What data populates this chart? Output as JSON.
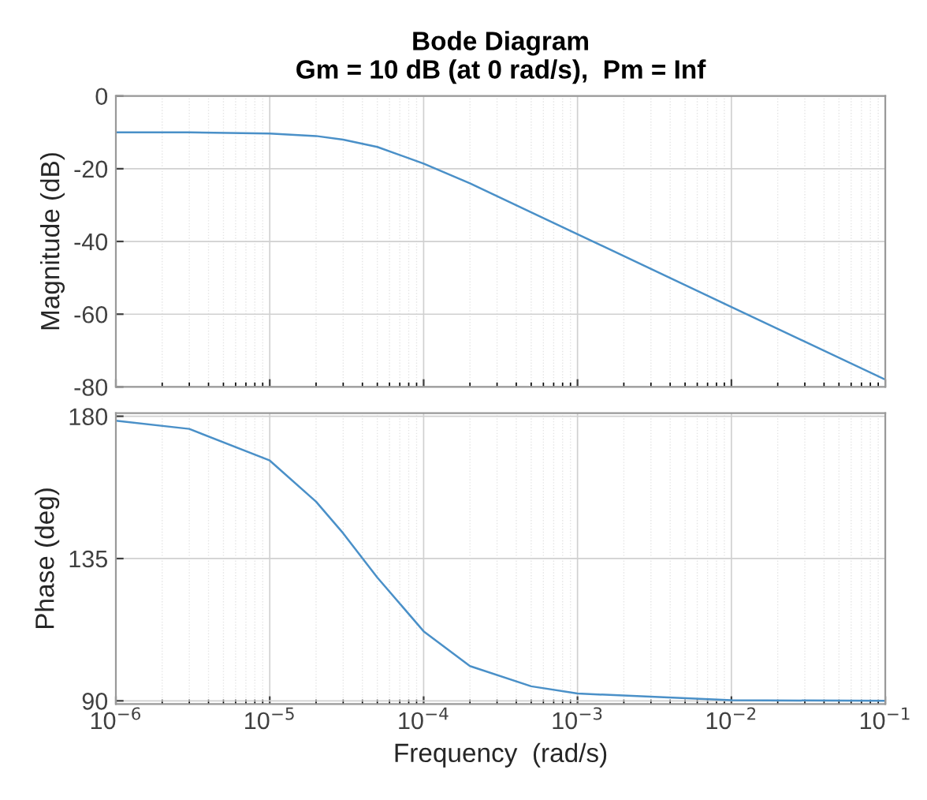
{
  "chart_data": [
    {
      "type": "line",
      "title": "Bode Diagram",
      "subtitle": "Gm = 10 dB (at 0 rad/s),  Pm = Inf",
      "ylabel": "Magnitude (dB)",
      "log": "x",
      "grid": true,
      "tick_labels": "y",
      "xlim": [
        1e-06,
        0.1
      ],
      "ylim": [
        -80,
        0
      ],
      "yticks": [
        -80,
        -60,
        -40,
        -20,
        0
      ],
      "series": [
        {
          "color": "#4a90c8",
          "x": [
            1e-06,
            3e-06,
            1e-05,
            2e-05,
            3e-05,
            5e-05,
            0.0001,
            0.0002,
            0.0005,
            0.001,
            0.01,
            0.1
          ],
          "values": [
            -10,
            -10,
            -10.3,
            -11,
            -12,
            -14,
            -18.6,
            -24,
            -32,
            -38,
            -58,
            -78
          ]
        }
      ]
    },
    {
      "type": "line",
      "xlabel": "Frequency  (rad/s)",
      "ylabel": "Phase (deg)",
      "log": "x",
      "grid": true,
      "xlim": [
        1e-06,
        0.1
      ],
      "ylim": [
        89,
        181
      ],
      "yticks": [
        90,
        135,
        180
      ],
      "xticks": [
        {
          "value": 1e-06,
          "label": "10$^{−6}$"
        },
        {
          "value": 1e-05,
          "label": "10$^{−5}$"
        },
        {
          "value": 0.0001,
          "label": "10$^{−4}$"
        },
        {
          "value": 0.001,
          "label": "10$^{−3}$"
        },
        {
          "value": 0.01,
          "label": "10$^{−2}$"
        },
        {
          "value": 0.1,
          "label": "10$^{−1}$"
        }
      ],
      "series": [
        {
          "color": "#4a90c8",
          "x": [
            1e-06,
            3e-06,
            1e-05,
            2e-05,
            3e-05,
            5e-05,
            0.0001,
            0.0002,
            0.0005,
            0.001,
            0.01,
            0.1
          ],
          "values": [
            178.6,
            176,
            166,
            153,
            143,
            129,
            112,
            101,
            94.6,
            92.3,
            90.2,
            90
          ]
        }
      ]
    }
  ]
}
